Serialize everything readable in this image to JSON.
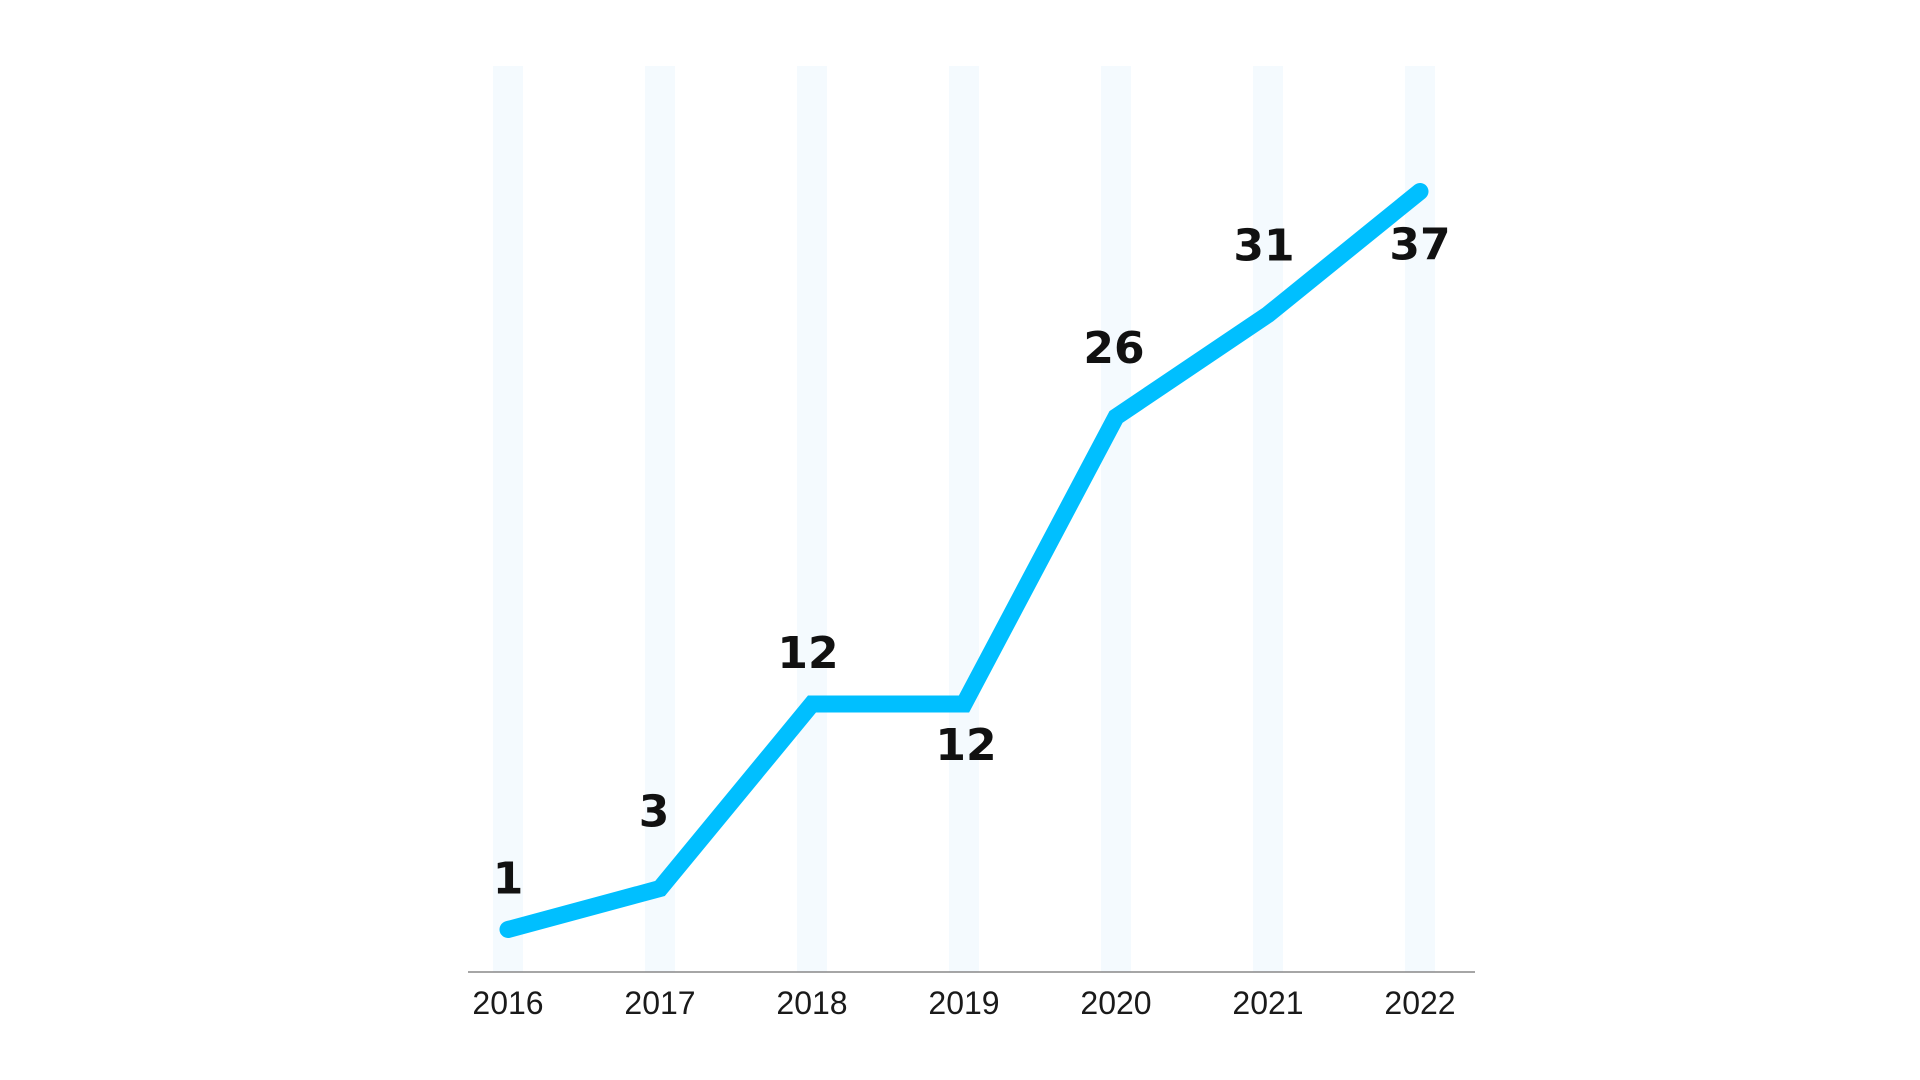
{
  "chart_data": {
    "type": "line",
    "categories": [
      "2016",
      "2017",
      "2018",
      "2019",
      "2020",
      "2021",
      "2022"
    ],
    "values": [
      1,
      3,
      12,
      12,
      26,
      31,
      37
    ],
    "data_labels": [
      "1",
      "3",
      "12",
      "12",
      "26",
      "31",
      "37"
    ],
    "ylim": [
      0,
      38
    ],
    "grid": "vertical bands",
    "legend": "none",
    "colors": {
      "line": "#00BFFF",
      "band": "#F4FAFE",
      "axis": "#888888",
      "text": "#111111"
    }
  }
}
